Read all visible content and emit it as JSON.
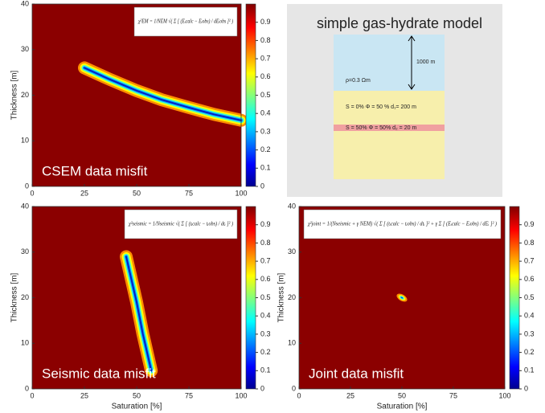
{
  "chart_data": [
    {
      "type": "heatmap",
      "title": "CSEM data misfit",
      "formula": "χ²EM = 1/NEM √( Σ [ (Eᵢcalc − Eᵢobs) / dEᵢobs ]² )",
      "ylabel": "Thickness [m]",
      "xlim": [
        0,
        100
      ],
      "ylim": [
        0,
        40
      ],
      "xticks": [
        0,
        25,
        50,
        75,
        100
      ],
      "yticks": [
        0,
        10,
        20,
        30,
        40
      ],
      "color": "#8b0000",
      "colorbar": {
        "lim": [
          0,
          1
        ],
        "ticks": [
          0,
          0.1,
          0.2,
          0.3,
          0.4,
          0.5,
          0.6,
          0.7,
          0.8,
          0.9
        ]
      },
      "valley": {
        "x": [
          25,
          37,
          50,
          62,
          75,
          87,
          100
        ],
        "y": [
          26,
          23.5,
          21,
          19,
          17.3,
          15.8,
          14.5
        ]
      }
    },
    {
      "type": "heatmap",
      "title": "Seismic data misfit",
      "formula": "χ²seismic = 1/Nseismic √( Σ [ (tᵢcalc − tᵢobs) / dtᵢ ]² )",
      "xlabel": "Saturation [%]",
      "ylabel": "Thickness [m]",
      "xlim": [
        0,
        100
      ],
      "ylim": [
        0,
        40
      ],
      "xticks": [
        0,
        25,
        50,
        75,
        100
      ],
      "yticks": [
        0,
        10,
        20,
        30,
        40
      ],
      "color": "#8b0000",
      "colorbar": {
        "lim": [
          0,
          1
        ],
        "ticks": [
          0,
          0.1,
          0.2,
          0.3,
          0.4,
          0.5,
          0.6,
          0.7,
          0.8,
          0.9
        ]
      },
      "valley": {
        "x": [
          45,
          47.5,
          50,
          53,
          57
        ],
        "y": [
          29,
          24,
          19,
          12,
          4
        ]
      }
    },
    {
      "type": "heatmap",
      "title": "Joint data misfit",
      "formula": "χ²joint = 1/(Nseismic + γ NEM) √( Σ [ (tᵢcalc − tᵢobs) / dtᵢ ]² + γ Σ [ (Eᵢcalc − Eᵢobs) / dEᵢ ]² )",
      "xlabel": "Saturation [%]",
      "ylabel": "Thickness [m]",
      "xlim": [
        0,
        100
      ],
      "ylim": [
        0,
        40
      ],
      "xticks": [
        0,
        25,
        50,
        75,
        100
      ],
      "yticks": [
        0,
        10,
        20,
        30,
        40
      ],
      "color": "#8b0000",
      "colorbar": {
        "lim": [
          0,
          1
        ],
        "ticks": [
          0,
          0.1,
          0.2,
          0.3,
          0.4,
          0.5,
          0.6,
          0.7,
          0.8,
          0.9
        ]
      },
      "valley": {
        "x": [
          50
        ],
        "y": [
          20
        ]
      }
    }
  ],
  "diagram": {
    "title": "simple gas-hydrate model",
    "depth": "1000 m",
    "resistivity": "ρ=0.3 Ωm",
    "layer1": "S = 0% Φ = 50 %   d₁= 200 m",
    "layer2": "S = 50% Φ = 50%   d₂ = 20 m"
  }
}
